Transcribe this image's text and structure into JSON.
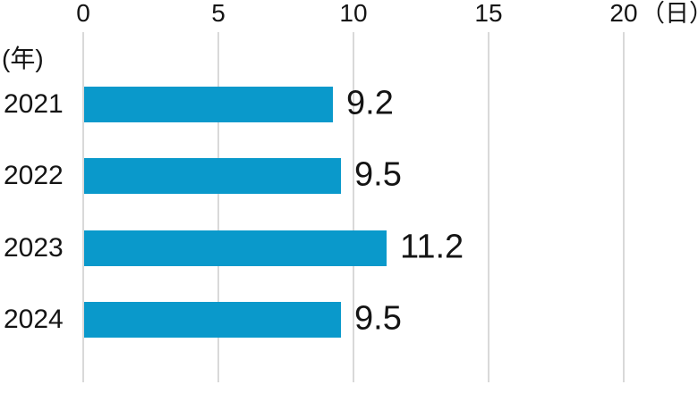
{
  "chart_data": {
    "type": "bar",
    "orientation": "horizontal",
    "title": "",
    "categories": [
      "2021",
      "2022",
      "2023",
      "2024"
    ],
    "values": [
      9.2,
      9.5,
      11.2,
      9.5
    ],
    "value_labels": [
      "9.2",
      "9.5",
      "11.2",
      "9.5"
    ],
    "x_ticks": [
      0,
      5,
      10,
      15,
      20
    ],
    "x_tick_labels": [
      "0",
      "5",
      "10",
      "15",
      "20"
    ],
    "x_unit": "（日）",
    "y_unit": "(年)",
    "xlim": [
      0,
      20
    ],
    "grid": true,
    "legend": false,
    "colors": {
      "bar": "#0a99cb",
      "gridline": "#d9d9d9",
      "text": "#141414",
      "background": "#ffffff"
    }
  }
}
